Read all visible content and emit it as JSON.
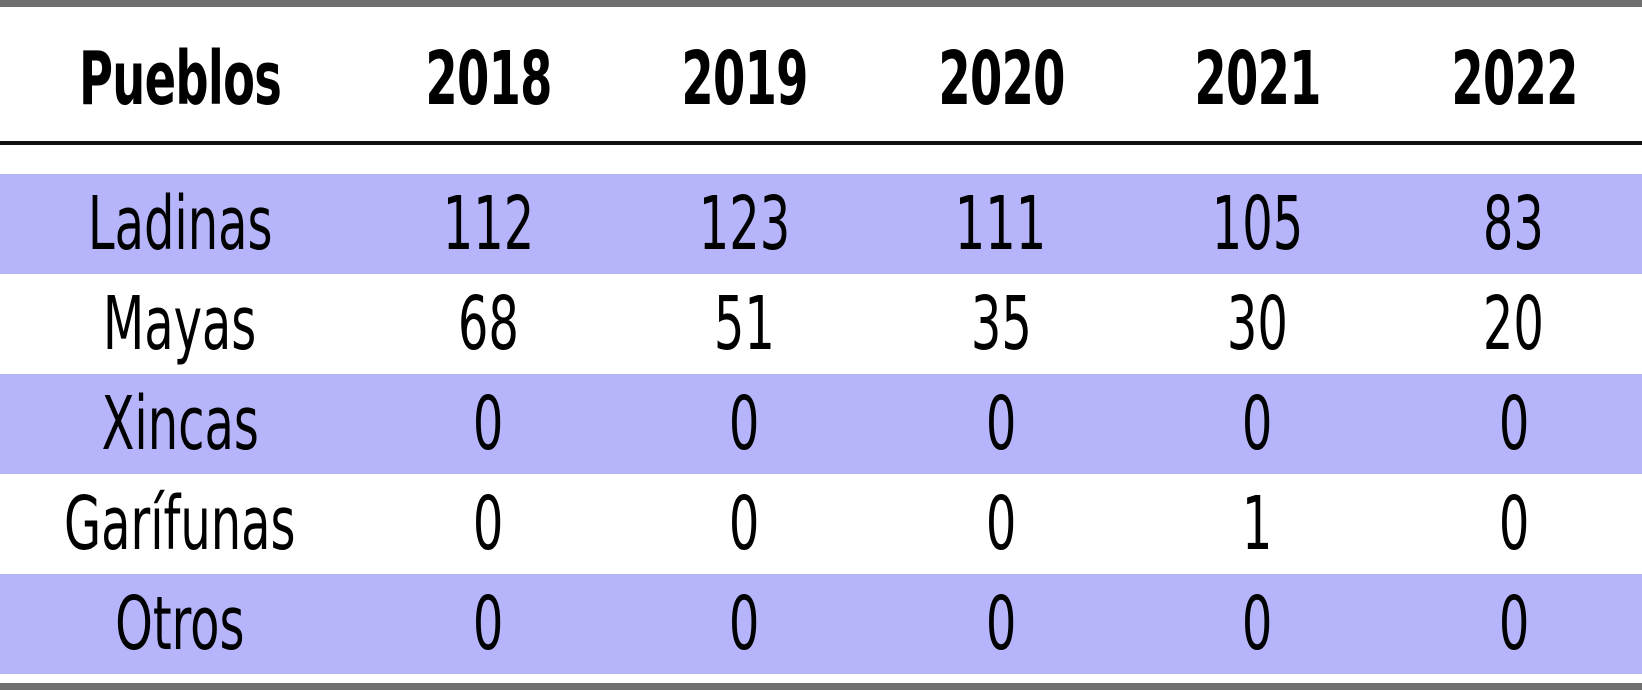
{
  "chart_data": {
    "type": "table",
    "columns": [
      "Pueblos",
      "2018",
      "2019",
      "2020",
      "2021",
      "2022"
    ],
    "rows": [
      {
        "label": "Ladinas",
        "values": [
          112,
          123,
          111,
          105,
          83
        ]
      },
      {
        "label": "Mayas",
        "values": [
          68,
          51,
          35,
          30,
          20
        ]
      },
      {
        "label": "Xincas",
        "values": [
          0,
          0,
          0,
          0,
          0
        ]
      },
      {
        "label": "Garífunas",
        "values": [
          0,
          0,
          0,
          1,
          0
        ]
      },
      {
        "label": "Otros",
        "values": [
          0,
          0,
          0,
          0,
          0
        ]
      }
    ]
  },
  "colors": {
    "band": "#b6b5fb",
    "rule": "#6f6f6f",
    "text": "#000000"
  }
}
